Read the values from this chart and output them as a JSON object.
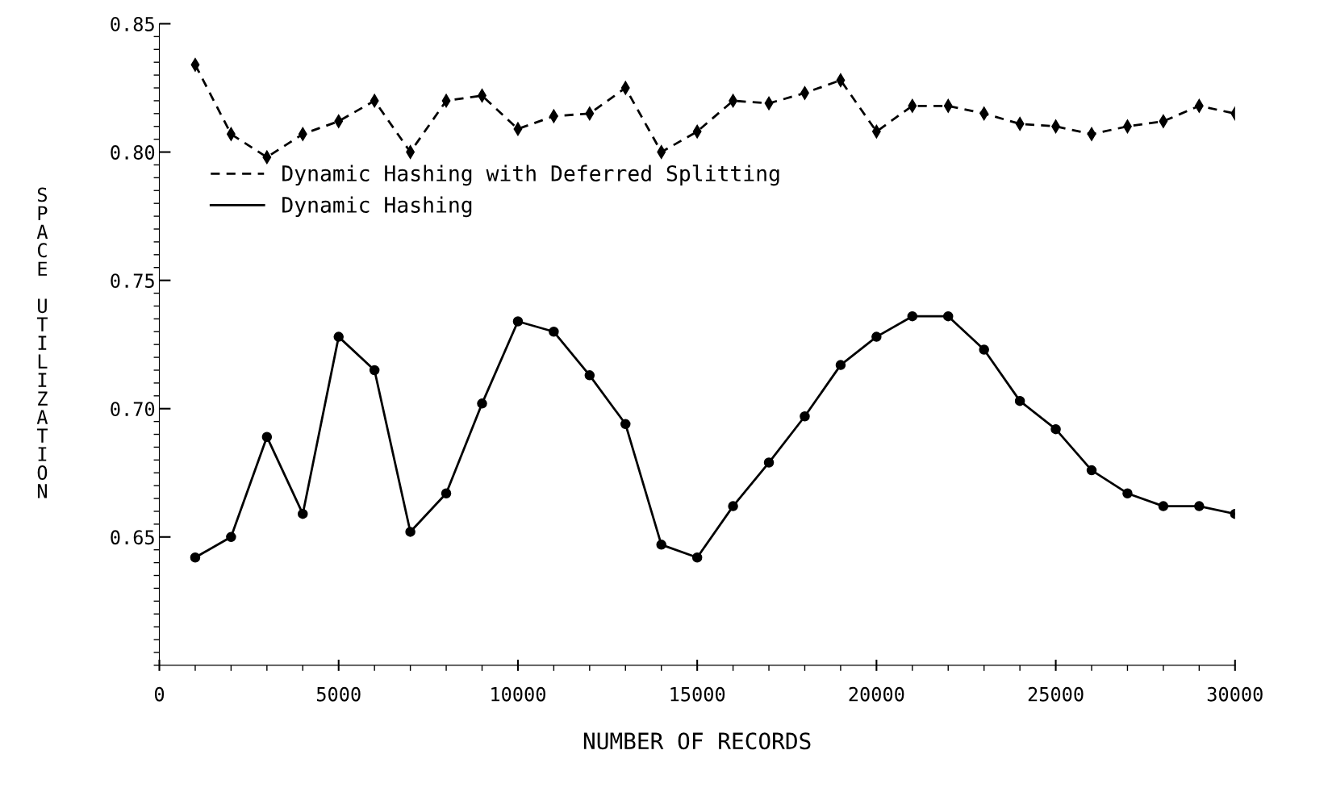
{
  "chart_data": {
    "type": "line",
    "xlabel": "NUMBER OF RECORDS",
    "ylabel": "SPACE UTILIZATION",
    "x": [
      1000,
      2000,
      3000,
      4000,
      5000,
      6000,
      7000,
      8000,
      9000,
      10000,
      11000,
      12000,
      13000,
      14000,
      15000,
      16000,
      17000,
      18000,
      19000,
      20000,
      21000,
      22000,
      23000,
      24000,
      25000,
      26000,
      27000,
      28000,
      29000,
      30000
    ],
    "series": [
      {
        "name": "Dynamic Hashing with Deferred Splitting",
        "color": "#000000",
        "line_style": "dashed",
        "marker": "diamond",
        "values": [
          0.834,
          0.807,
          0.798,
          0.807,
          0.812,
          0.82,
          0.8,
          0.82,
          0.822,
          0.809,
          0.814,
          0.815,
          0.825,
          0.8,
          0.808,
          0.82,
          0.819,
          0.823,
          0.828,
          0.808,
          0.818,
          0.818,
          0.815,
          0.811,
          0.81,
          0.807,
          0.81,
          0.812,
          0.818,
          0.815
        ]
      },
      {
        "name": "Dynamic Hashing",
        "color": "#000000",
        "line_style": "solid",
        "marker": "circle",
        "values": [
          0.642,
          0.65,
          0.689,
          0.659,
          0.728,
          0.715,
          0.652,
          0.667,
          0.702,
          0.734,
          0.73,
          0.713,
          0.694,
          0.647,
          0.642,
          0.662,
          0.679,
          0.697,
          0.717,
          0.728,
          0.736,
          0.736,
          0.723,
          0.703,
          0.692,
          0.676,
          0.667,
          0.662,
          0.662,
          0.659
        ]
      }
    ],
    "xlim": [
      0,
      30000
    ],
    "xticks": [
      0,
      5000,
      10000,
      15000,
      20000,
      25000,
      30000
    ],
    "ylim": [
      0.6,
      0.85
    ],
    "yticks": [
      {
        "value": 0.65,
        "label": "0.65"
      },
      {
        "value": 0.7,
        "label": "0.70"
      },
      {
        "value": 0.75,
        "label": "0.75"
      },
      {
        "value": 0.8,
        "label": "0.80"
      },
      {
        "value": 0.85,
        "label": "0.85"
      }
    ],
    "grid": false,
    "legend": "top left"
  }
}
